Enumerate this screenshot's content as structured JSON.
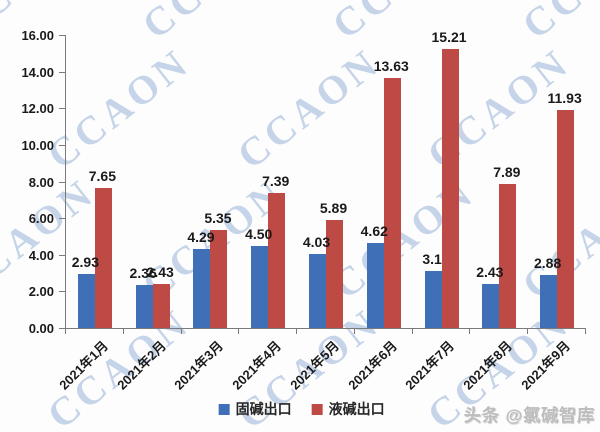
{
  "watermark": {
    "text": "CCAON",
    "color": "rgba(114,150,202,0.40)"
  },
  "footer": {
    "watermark": "头条 @氯碱智库"
  },
  "chart_data": {
    "type": "bar",
    "title": "",
    "categories": [
      "2021年1月",
      "2021年2月",
      "2021年3月",
      "2021年4月",
      "2021年5月",
      "2021年6月",
      "2021年7月",
      "2021年8月",
      "2021年9月"
    ],
    "series": [
      {
        "id": "solid-caustic-export",
        "name": "固碱出口",
        "color": "#3f70b7",
        "values": [
          2.93,
          2.36,
          4.29,
          4.5,
          4.03,
          4.62,
          3.1,
          2.43,
          2.88
        ],
        "labels": [
          "2.93",
          "2.36",
          "4.29",
          "4.50",
          "4.03",
          "4.62",
          "3.1",
          "2.43",
          "2.88"
        ]
      },
      {
        "id": "liquid-caustic-export",
        "name": "液碱出口",
        "color": "#be4a45",
        "values": [
          7.65,
          2.43,
          5.35,
          7.39,
          5.89,
          13.63,
          15.21,
          7.89,
          11.93
        ],
        "labels": [
          "7.65",
          "2.43",
          "5.35",
          "7.39",
          "5.89",
          "13.63",
          "15.21",
          "7.89",
          "11.93"
        ]
      }
    ],
    "ylim": [
      0,
      16
    ],
    "ytick_step": 2,
    "ytick_labels": [
      "16.00",
      "14.00",
      "12.00",
      "10.00",
      "8.00",
      "6.00",
      "4.00",
      "2.00",
      "0.00"
    ],
    "grid": false,
    "legend_position": "bottom-center",
    "xlabel": "",
    "ylabel": ""
  }
}
